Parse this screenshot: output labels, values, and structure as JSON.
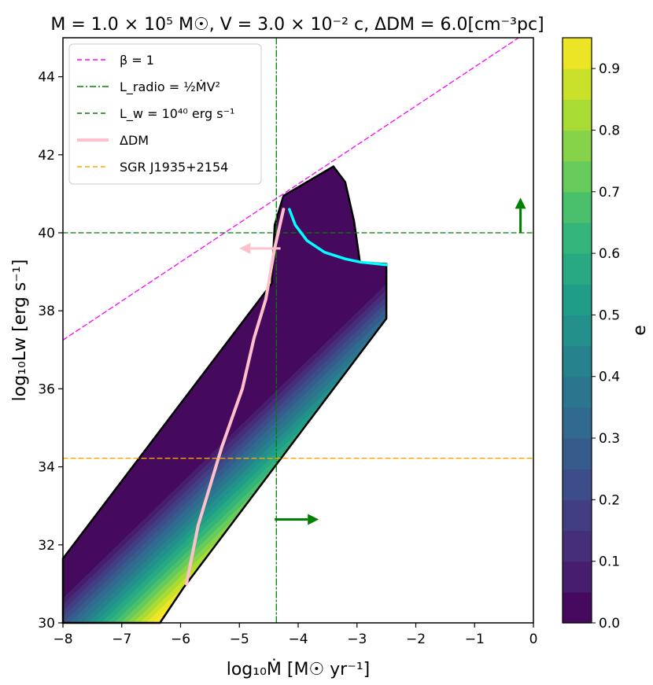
{
  "chart_data": {
    "type": "heatmap",
    "title": "M = 1.0 × 10⁵ M☉, V = 3.0 × 10⁻² c, ΔDM = 6.0[cm⁻³pc]",
    "xlabel": "log₁₀Ṁ [M☉ yr⁻¹]",
    "ylabel": "log₁₀Lw [erg s⁻¹]",
    "xlim": [
      -8,
      0
    ],
    "ylim": [
      30,
      45
    ],
    "xticks": [
      -8,
      -7,
      -6,
      -5,
      -4,
      -3,
      -2,
      -1,
      0
    ],
    "xtick_labels": [
      "−8",
      "−7",
      "−6",
      "−5",
      "−4",
      "−3",
      "−2",
      "−1",
      "0"
    ],
    "yticks": [
      30,
      32,
      34,
      36,
      38,
      40,
      42,
      44
    ],
    "ytick_labels": [
      "30",
      "32",
      "34",
      "36",
      "38",
      "40",
      "42",
      "44"
    ],
    "colorbar": {
      "label": "e",
      "range": [
        0.0,
        0.95
      ],
      "ticks": [
        0.0,
        0.1,
        0.2,
        0.3,
        0.4,
        0.5,
        0.6,
        0.7,
        0.8,
        0.9
      ],
      "tick_labels": [
        "0.0",
        "0.1",
        "0.2",
        "0.3",
        "0.4",
        "0.5",
        "0.6",
        "0.7",
        "0.8",
        "0.9"
      ],
      "levels": 19,
      "colormap": "viridis"
    },
    "region_boundary": [
      [
        -8,
        31.65
      ],
      [
        -4.45,
        38.7
      ],
      [
        -4.4,
        40.2
      ],
      [
        -4.25,
        40.95
      ],
      [
        -3.4,
        41.7
      ],
      [
        -3.2,
        41.3
      ],
      [
        -3.05,
        40.3
      ],
      [
        -2.95,
        39.25
      ],
      [
        -2.5,
        39.2
      ],
      [
        -2.5,
        37.8
      ],
      [
        -5.95,
        30.9
      ],
      [
        -6.35,
        30
      ],
      [
        -8,
        30
      ]
    ],
    "lines": [
      {
        "name": "β = 1",
        "style": "dashed",
        "color": "#ff00ff",
        "points": [
          [
            -8,
            37.25
          ],
          [
            -0.25,
            45
          ]
        ]
      },
      {
        "name": "L_radio = ½ Ṁ V²",
        "style": "dashdot",
        "color": "#008000",
        "x": -4.37
      },
      {
        "name": "Lw = 10⁴⁰ erg s⁻¹",
        "style": "dashed",
        "color": "#008000",
        "y": 40
      },
      {
        "name": "ΔDM",
        "style": "solid",
        "color": "#ffc0cb",
        "points": [
          [
            -5.9,
            31
          ],
          [
            -5.7,
            32.5
          ],
          [
            -5.3,
            34.5
          ],
          [
            -4.95,
            36.0
          ],
          [
            -4.75,
            37.3
          ],
          [
            -4.55,
            38.3
          ],
          [
            -4.4,
            39.6
          ],
          [
            -4.25,
            40.6
          ]
        ]
      },
      {
        "name": "SGR J1935+2154",
        "style": "dashed",
        "color": "#ffa500",
        "y": 34.22
      }
    ],
    "boundary_curve": {
      "color": "#00ffff",
      "points": [
        [
          -4.15,
          40.6
        ],
        [
          -4.05,
          40.2
        ],
        [
          -3.85,
          39.8
        ],
        [
          -3.55,
          39.5
        ],
        [
          -3.2,
          39.33
        ],
        [
          -2.95,
          39.25
        ],
        [
          -2.5,
          39.18
        ]
      ]
    },
    "arrows": [
      {
        "color": "#ffc0cb",
        "from": [
          -4.3,
          39.6
        ],
        "to": [
          -5.0,
          39.6
        ]
      },
      {
        "color": "#008000",
        "from": [
          -4.4,
          32.65
        ],
        "to": [
          -3.65,
          32.65
        ]
      },
      {
        "color": "#008000",
        "from": [
          -0.22,
          40.0
        ],
        "to": [
          -0.22,
          40.9
        ]
      }
    ],
    "legend": {
      "placement": "top-left",
      "entries": [
        {
          "label": "β = 1",
          "color": "#ff00ff",
          "style": "dashed"
        },
        {
          "label": "L_radio = ½ṀV²",
          "color": "#008000",
          "style": "dashdot"
        },
        {
          "label": "L_w = 10⁴⁰ erg s⁻¹",
          "color": "#008000",
          "style": "dashed"
        },
        {
          "label": "ΔDM",
          "color": "#ffc0cb",
          "style": "solid"
        },
        {
          "label": "SGR J1935+2154",
          "color": "#ffa500",
          "style": "dashed"
        }
      ]
    }
  }
}
